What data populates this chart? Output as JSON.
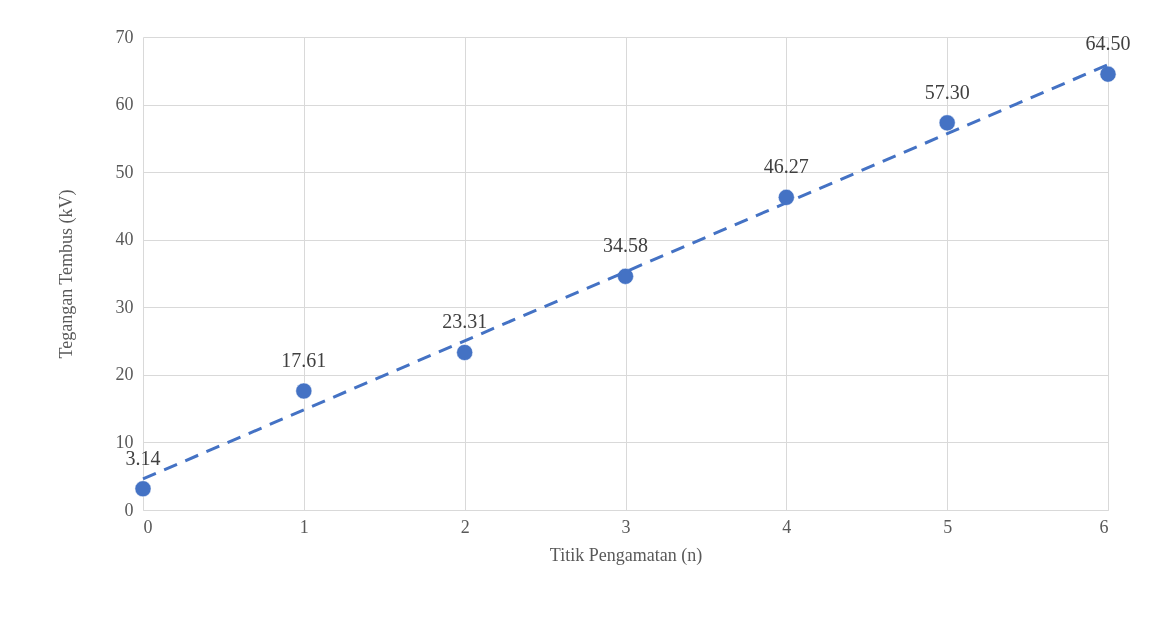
{
  "chart_data": {
    "type": "scatter",
    "xlabel": "Titik Pengamatan (n)",
    "ylabel": "Tegangan Tembus (kV)",
    "xlim": [
      0,
      6
    ],
    "ylim": [
      0,
      70
    ],
    "xticks": [
      0,
      1,
      2,
      3,
      4,
      5,
      6
    ],
    "yticks": [
      0,
      10,
      20,
      30,
      40,
      50,
      60,
      70
    ],
    "grid": true,
    "line_style": "dashed",
    "series": [
      {
        "color": "#4472c4",
        "marker": "circle",
        "x": [
          0,
          1,
          2,
          3,
          4,
          5,
          6
        ],
        "values": [
          3.14,
          17.61,
          23.31,
          34.58,
          46.27,
          57.3,
          64.5
        ],
        "value_labels": [
          "3.14",
          "17.61",
          "23.31",
          "34.58",
          "46.27",
          "57.30",
          "64.50"
        ]
      },
      {
        "type": "line",
        "color": "#4472c4",
        "x": [
          0,
          6
        ],
        "values": [
          4.6,
          65.9
        ]
      }
    ]
  }
}
